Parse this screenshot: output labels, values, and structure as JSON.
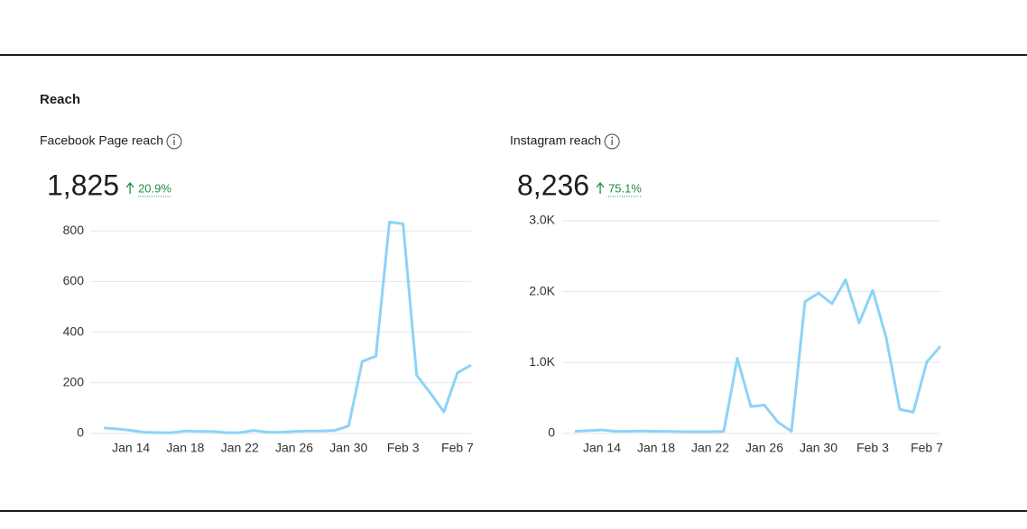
{
  "section_title": "Reach",
  "chart_data": [
    {
      "type": "line",
      "title": "Facebook Page reach",
      "total": "1,825",
      "change": "20.9%",
      "categories": [
        null,
        null,
        "Jan 14",
        null,
        null,
        null,
        "Jan 18",
        null,
        null,
        null,
        "Jan 22",
        null,
        null,
        null,
        "Jan 26",
        null,
        null,
        null,
        "Jan 30",
        null,
        null,
        null,
        "Feb 3",
        null,
        null,
        null,
        "Feb 7",
        null
      ],
      "series": [
        {
          "name": "Facebook Page reach",
          "color": "#8dd3f7",
          "values": [
            22,
            18,
            12,
            5,
            3,
            3,
            10,
            8,
            8,
            3,
            3,
            12,
            5,
            5,
            8,
            10,
            10,
            12,
            30,
            285,
            305,
            835,
            828,
            230,
            160,
            85,
            240,
            270
          ]
        }
      ],
      "ylim": [
        0,
        840
      ],
      "yticks": [
        0,
        200,
        400,
        600,
        800
      ],
      "grid": true
    },
    {
      "type": "line",
      "title": "Instagram reach",
      "total": "8,236",
      "change": "75.1%",
      "categories": [
        null,
        null,
        "Jan 14",
        null,
        null,
        null,
        "Jan 18",
        null,
        null,
        null,
        "Jan 22",
        null,
        null,
        null,
        "Jan 26",
        null,
        null,
        null,
        "Jan 30",
        null,
        null,
        null,
        "Feb 3",
        null,
        null,
        null,
        "Feb 7",
        null
      ],
      "series": [
        {
          "name": "Instagram reach",
          "color": "#8dd3f7",
          "values": [
            30,
            40,
            50,
            30,
            30,
            35,
            30,
            30,
            25,
            25,
            25,
            30,
            1060,
            380,
            400,
            160,
            30,
            1860,
            1980,
            1830,
            2170,
            1560,
            2020,
            1350,
            340,
            300,
            1010,
            1230
          ]
        }
      ],
      "ylim": [
        0,
        3000
      ],
      "yticks": [
        0,
        {
          "value": 1000,
          "label": "1.0K"
        },
        {
          "value": 2000,
          "label": "2.0K"
        },
        {
          "value": 3000,
          "label": "3.0K"
        }
      ],
      "grid": true
    }
  ]
}
